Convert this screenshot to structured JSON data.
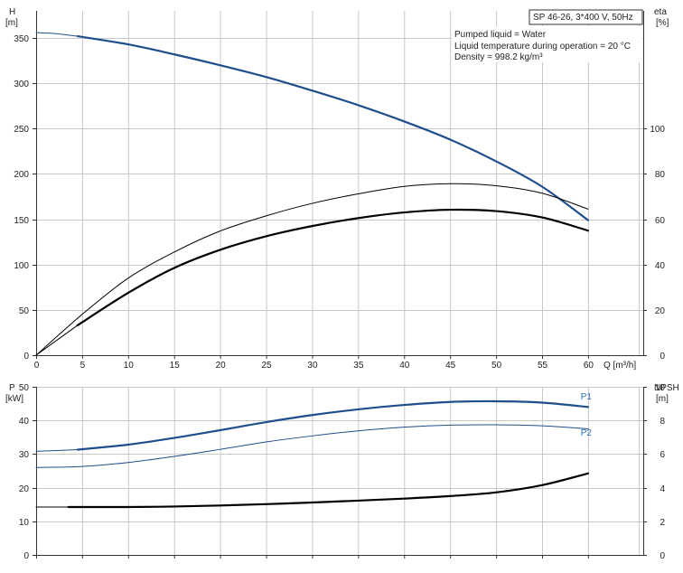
{
  "title": "SP 46-26, 3*400 V, 50Hz",
  "info": {
    "lines": [
      "Pumped liquid = Water",
      "Liquid temperature during operation = 20 °C",
      "Density = 998.2 kg/m³"
    ]
  },
  "colors": {
    "blue": "#1f4e8c",
    "lightblue": "#2c6fb0",
    "black": "#000000",
    "grid": "#c8c8c8"
  },
  "chart_data": [
    {
      "type": "line",
      "name": "top",
      "xlabel": "Q [m³/h]",
      "ylabel_left": [
        "H",
        "[m]"
      ],
      "ylabel_right": [
        "eta",
        "[%]"
      ],
      "xlim": [
        0,
        66
      ],
      "ylim_left": [
        0,
        380
      ],
      "ylim_right": [
        0,
        152
      ],
      "x_ticks": [
        0,
        5,
        10,
        15,
        20,
        25,
        30,
        35,
        40,
        45,
        50,
        55,
        60
      ],
      "y_ticks_left": [
        0,
        50,
        100,
        150,
        200,
        250,
        300,
        350
      ],
      "y_ticks_right": [
        0,
        20,
        40,
        60,
        80,
        100
      ],
      "grid": true,
      "series": [
        {
          "axis": "left",
          "color": "#1f4e8c",
          "width": 2.2,
          "x": [
            4.5,
            10,
            15,
            20,
            25,
            30,
            35,
            40,
            45,
            50,
            55,
            60
          ],
          "y": [
            352,
            343,
            332,
            320,
            307,
            292,
            276,
            258,
            238,
            214,
            186,
            149
          ]
        },
        {
          "axis": "left",
          "color": "#1f4e8c",
          "width": 1.0,
          "x": [
            0,
            2,
            4.5
          ],
          "y": [
            356,
            355,
            352
          ]
        },
        {
          "axis": "right",
          "color": "#000000",
          "width": 1.0,
          "x": [
            0,
            5,
            10,
            15,
            20,
            25,
            30,
            35,
            40,
            45,
            50,
            55,
            60
          ],
          "y": [
            0,
            18,
            34,
            45.5,
            54.8,
            61.5,
            67,
            71.2,
            74.5,
            75.7,
            74.8,
            71.5,
            64.5
          ]
        },
        {
          "axis": "right",
          "color": "#000000",
          "width": 2.2,
          "x": [
            4.5,
            10,
            15,
            20,
            25,
            30,
            35,
            40,
            45,
            50,
            55,
            60
          ],
          "y": [
            13.2,
            27.5,
            38.5,
            46.5,
            52.5,
            57,
            60.5,
            63,
            64.2,
            63.6,
            60.8,
            55
          ]
        },
        {
          "axis": "right",
          "color": "#000000",
          "width": 1.0,
          "x": [
            0,
            4.5
          ],
          "y": [
            0,
            13.2
          ]
        }
      ]
    },
    {
      "type": "line",
      "name": "bottom",
      "xlim": [
        0,
        66
      ],
      "ylabel_left": [
        "P",
        "[kW]"
      ],
      "ylabel_right": [
        "NPSH",
        "[m]"
      ],
      "ylim_left": [
        0,
        50
      ],
      "ylim_right": [
        0,
        10
      ],
      "y_ticks_left": [
        0,
        10,
        20,
        30,
        40,
        50
      ],
      "y_ticks_right": [
        0,
        2,
        4,
        6,
        8,
        10
      ],
      "grid": true,
      "series": [
        {
          "name": "P1",
          "axis": "left",
          "color": "#1f4e8c",
          "width": 2.2,
          "x": [
            4.5,
            10,
            15,
            20,
            25,
            30,
            35,
            40,
            45,
            50,
            55,
            60
          ],
          "y": [
            31.3,
            32.8,
            34.8,
            37.1,
            39.5,
            41.6,
            43.3,
            44.6,
            45.5,
            45.7,
            45.3,
            44.0
          ]
        },
        {
          "axis": "left",
          "color": "#1f4e8c",
          "width": 1.0,
          "x": [
            0,
            4.5
          ],
          "y": [
            30.8,
            31.3
          ]
        },
        {
          "name": "P2",
          "axis": "left",
          "color": "#1f4e8c",
          "width": 1.0,
          "x": [
            0,
            5,
            10,
            15,
            20,
            25,
            30,
            35,
            40,
            45,
            50,
            55,
            60
          ],
          "y": [
            26.0,
            26.3,
            27.5,
            29.3,
            31.4,
            33.6,
            35.4,
            36.9,
            38.0,
            38.6,
            38.7,
            38.4,
            37.5
          ]
        },
        {
          "axis": "right",
          "color": "#000000",
          "width": 2.2,
          "x": [
            3.5,
            10,
            15,
            20,
            25,
            30,
            35,
            40,
            45,
            50,
            55,
            60
          ],
          "y": [
            2.85,
            2.85,
            2.88,
            2.94,
            3.02,
            3.12,
            3.23,
            3.35,
            3.5,
            3.72,
            4.15,
            4.85
          ]
        },
        {
          "axis": "right",
          "color": "#000000",
          "width": 1.0,
          "x": [
            0,
            3.5
          ],
          "y": [
            2.85,
            2.85
          ]
        }
      ],
      "labels": [
        {
          "text": "P1",
          "x": 59.2,
          "y": 46.2,
          "axis": "left"
        },
        {
          "text": "P2",
          "x": 59.2,
          "y": 35.5,
          "axis": "left"
        }
      ]
    }
  ]
}
